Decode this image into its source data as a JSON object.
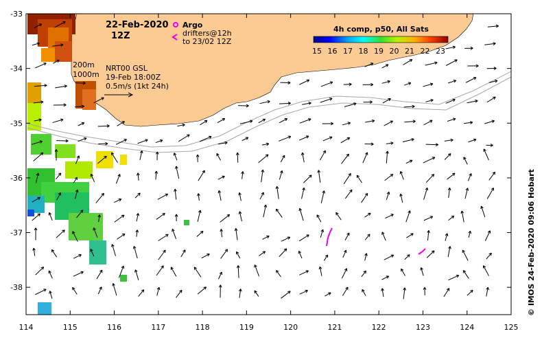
{
  "map": {
    "date": "22-Feb-2020",
    "time": "12Z",
    "legend_argo": "Argo",
    "legend_drifters_line1": "drifters@12h",
    "legend_drifters_line2": "to 23/02 12Z",
    "depth_200": "200m",
    "depth_1000": "1000m",
    "model_line1": "NRT00 GSL",
    "model_line2": "19-Feb 18:00Z",
    "scale_label": "0.5m/s (1kt 24h)",
    "colorbar_title": "4h comp, p50, All Sats",
    "colorbar_ticks": [
      "15",
      "16",
      "17",
      "18",
      "19",
      "20",
      "21",
      "22",
      "23"
    ],
    "colorbar_range": [
      15,
      23
    ],
    "credit": "© IMOS 24-Feb-2020 09:06 Hobart",
    "colors": {
      "land": "#FBCB93",
      "argo": "#EE00EE",
      "drifter": "#EE00EE",
      "isobath": "#A8A8A8"
    }
  },
  "axes": {
    "x_ticks": [
      "114",
      "115",
      "116",
      "117",
      "118",
      "119",
      "120",
      "121",
      "122",
      "123",
      "124",
      "125"
    ],
    "y_ticks": [
      "-33",
      "-34",
      "-35",
      "-36",
      "-37",
      "-38"
    ],
    "lon_range": [
      114,
      125
    ],
    "lat_range": [
      -33,
      -38.5
    ]
  }
}
